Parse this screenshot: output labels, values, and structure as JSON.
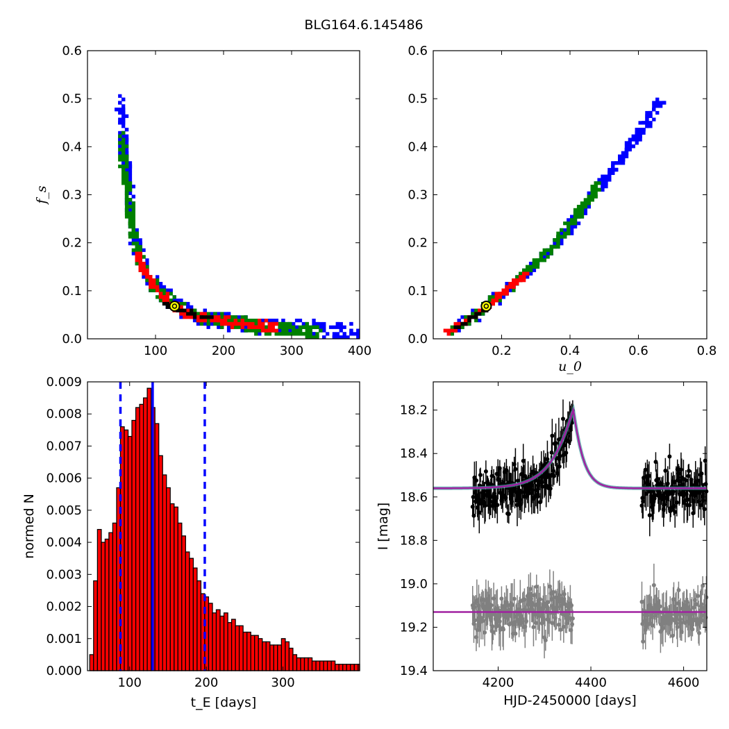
{
  "title": "BLG164.6.145486",
  "chart_data": [
    {
      "id": "fs_vs_tE",
      "type": "heatmap",
      "xlabel": "",
      "ylabel": "f_s",
      "xlim": [
        0,
        400
      ],
      "ylim": [
        0,
        0.6
      ],
      "xticks": [
        100,
        200,
        300,
        400
      ],
      "yticks": [
        0.0,
        0.1,
        0.2,
        0.3,
        0.4,
        0.5,
        0.6
      ],
      "levels": [
        {
          "name": "outer",
          "color": "#0000ff",
          "points": [
            [
              45,
              0.5
            ],
            [
              50,
              0.44
            ],
            [
              55,
              0.36
            ],
            [
              60,
              0.29
            ],
            [
              65,
              0.23
            ],
            [
              70,
              0.19
            ],
            [
              80,
              0.15
            ],
            [
              90,
              0.125
            ],
            [
              100,
              0.105
            ],
            [
              110,
              0.09
            ],
            [
              120,
              0.08
            ],
            [
              140,
              0.065
            ],
            [
              160,
              0.05
            ],
            [
              180,
              0.045
            ],
            [
              200,
              0.04
            ],
            [
              250,
              0.03
            ],
            [
              300,
              0.025
            ],
            [
              350,
              0.02
            ],
            [
              400,
              0.018
            ]
          ]
        },
        {
          "name": "middle",
          "color": "#008000",
          "points": [
            [
              48,
              0.42
            ],
            [
              52,
              0.36
            ],
            [
              57,
              0.3
            ],
            [
              63,
              0.24
            ],
            [
              70,
              0.19
            ],
            [
              80,
              0.15
            ],
            [
              90,
              0.125
            ],
            [
              100,
              0.105
            ],
            [
              115,
              0.085
            ],
            [
              130,
              0.07
            ],
            [
              150,
              0.055
            ],
            [
              175,
              0.045
            ],
            [
              200,
              0.04
            ],
            [
              250,
              0.03
            ],
            [
              300,
              0.022
            ],
            [
              340,
              0.018
            ]
          ]
        },
        {
          "name": "inner",
          "color": "#ff0000",
          "points": [
            [
              70,
              0.18
            ],
            [
              78,
              0.155
            ],
            [
              86,
              0.135
            ],
            [
              95,
              0.115
            ],
            [
              105,
              0.098
            ],
            [
              118,
              0.08
            ],
            [
              130,
              0.068
            ],
            [
              145,
              0.058
            ],
            [
              160,
              0.05
            ],
            [
              180,
              0.044
            ],
            [
              200,
              0.04
            ],
            [
              230,
              0.035
            ],
            [
              260,
              0.031
            ],
            [
              280,
              0.028
            ]
          ]
        },
        {
          "name": "core",
          "color": "#000000",
          "points": [
            [
              110,
              0.08
            ],
            [
              118,
              0.075
            ],
            [
              125,
              0.07
            ],
            [
              135,
              0.065
            ],
            [
              145,
              0.058
            ],
            [
              155,
              0.053
            ],
            [
              165,
              0.05
            ],
            [
              180,
              0.045
            ]
          ]
        }
      ],
      "best_fit": {
        "x": 128,
        "y": 0.068,
        "color": "#ffff00"
      }
    },
    {
      "id": "fs_vs_u0",
      "type": "heatmap",
      "xlabel": "u_0",
      "ylabel": "",
      "xlim": [
        0.0,
        0.8
      ],
      "ylim": [
        0,
        0.6
      ],
      "xticks": [
        0.2,
        0.4,
        0.6,
        0.8
      ],
      "yticks": [
        0.0,
        0.1,
        0.2,
        0.3,
        0.4,
        0.5,
        0.6
      ],
      "levels": [
        {
          "name": "outer",
          "color": "#0000ff",
          "points": [
            [
              0.05,
              0.02
            ],
            [
              0.1,
              0.045
            ],
            [
              0.15,
              0.07
            ],
            [
              0.2,
              0.1
            ],
            [
              0.25,
              0.13
            ],
            [
              0.3,
              0.165
            ],
            [
              0.35,
              0.2
            ],
            [
              0.4,
              0.245
            ],
            [
              0.45,
              0.29
            ],
            [
              0.5,
              0.34
            ],
            [
              0.55,
              0.385
            ],
            [
              0.6,
              0.43
            ],
            [
              0.63,
              0.47
            ],
            [
              0.66,
              0.5
            ]
          ]
        },
        {
          "name": "middle",
          "color": "#008000",
          "points": [
            [
              0.05,
              0.02
            ],
            [
              0.1,
              0.045
            ],
            [
              0.15,
              0.07
            ],
            [
              0.2,
              0.1
            ],
            [
              0.25,
              0.13
            ],
            [
              0.3,
              0.165
            ],
            [
              0.35,
              0.2
            ],
            [
              0.4,
              0.245
            ],
            [
              0.45,
              0.29
            ],
            [
              0.48,
              0.33
            ]
          ]
        },
        {
          "name": "inner",
          "color": "#ff0000",
          "points": [
            [
              0.04,
              0.018
            ],
            [
              0.08,
              0.035
            ],
            [
              0.12,
              0.055
            ],
            [
              0.16,
              0.075
            ],
            [
              0.2,
              0.1
            ],
            [
              0.24,
              0.125
            ],
            [
              0.27,
              0.14
            ]
          ]
        },
        {
          "name": "core",
          "color": "#000000",
          "points": [
            [
              0.06,
              0.025
            ],
            [
              0.1,
              0.045
            ],
            [
              0.14,
              0.06
            ],
            [
              0.16,
              0.07
            ]
          ]
        }
      ],
      "best_fit": {
        "x": 0.155,
        "y": 0.068,
        "color": "#ffff00"
      }
    },
    {
      "id": "tE_histogram",
      "type": "bar",
      "xlabel": "t_E [days]",
      "ylabel": "normed N",
      "xlim": [
        45,
        400
      ],
      "ylim": [
        0,
        0.009
      ],
      "xticks": [
        100,
        200,
        300
      ],
      "yticks": [
        0.0,
        0.001,
        0.002,
        0.003,
        0.004,
        0.005,
        0.006,
        0.007,
        0.008,
        0.009
      ],
      "bar_color": "#ff0000",
      "bin_start": 48,
      "bin_width": 5,
      "values": [
        0.0005,
        0.0028,
        0.0044,
        0.004,
        0.0041,
        0.0043,
        0.0046,
        0.0057,
        0.0076,
        0.0075,
        0.0073,
        0.0078,
        0.0082,
        0.0083,
        0.0085,
        0.0088,
        0.0082,
        0.0077,
        0.0067,
        0.0061,
        0.0057,
        0.0052,
        0.0051,
        0.0046,
        0.0042,
        0.0037,
        0.0035,
        0.0032,
        0.0028,
        0.0024,
        0.0023,
        0.0021,
        0.0018,
        0.0019,
        0.0017,
        0.0018,
        0.0015,
        0.0016,
        0.0014,
        0.0014,
        0.0012,
        0.0012,
        0.0011,
        0.0011,
        0.001,
        0.0009,
        0.0009,
        0.0008,
        0.0008,
        0.0008,
        0.001,
        0.0009,
        0.0007,
        0.0005,
        0.0004,
        0.0004,
        0.0004,
        0.0004,
        0.0003,
        0.0003,
        0.0003,
        0.0003,
        0.0003,
        0.0003,
        0.0002,
        0.0002,
        0.0002,
        0.0002,
        0.0002,
        0.0002,
        0.0002
      ],
      "vlines": [
        {
          "x": 130,
          "style": "solid",
          "color": "#0000ff"
        },
        {
          "x": 88,
          "style": "dashed",
          "color": "#0000ff"
        },
        {
          "x": 198,
          "style": "dashed",
          "color": "#0000ff"
        }
      ]
    },
    {
      "id": "light_curve",
      "type": "scatter",
      "xlabel": "HJD-2450000 [days]",
      "ylabel": "I [mag]",
      "xlim": [
        4060,
        4650
      ],
      "ylim": [
        19.4,
        18.07
      ],
      "xticks": [
        4200,
        4400,
        4600
      ],
      "yticks": [
        18.2,
        18.4,
        18.6,
        18.8,
        19.0,
        19.2,
        19.4
      ],
      "model": {
        "baseline": 18.56,
        "t0": 4362,
        "peak": 18.2,
        "color": "#a020a0"
      },
      "residual_baseline": 19.13,
      "series": [
        {
          "name": "",
          "color": "#000000",
          "segments": [
            [
              4145,
              4362
            ],
            [
              4510,
              4650
            ]
          ],
          "level": 18.53,
          "scatter": 0.05
        },
        {
          "name": "",
          "color": "#808080",
          "segments": [
            [
              4145,
              4362
            ],
            [
              4510,
              4650
            ]
          ],
          "level": 19.13,
          "scatter": 0.05
        }
      ]
    }
  ]
}
